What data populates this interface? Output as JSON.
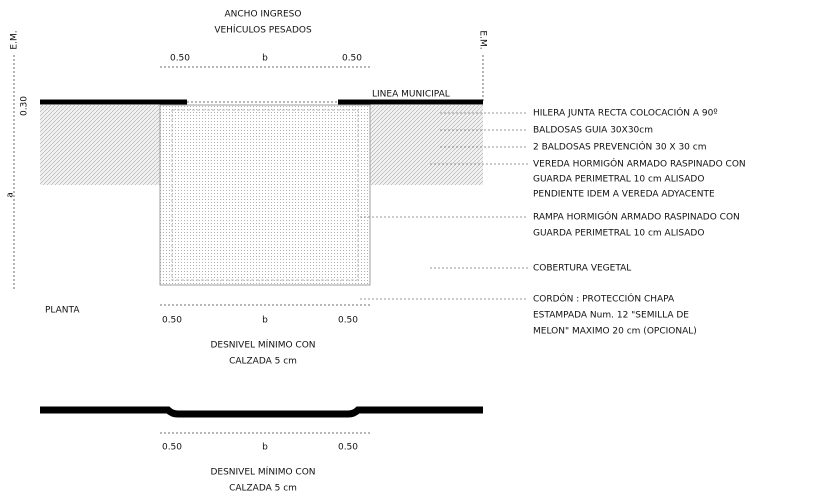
{
  "header": {
    "title_line1": "ANCHO INGRESO",
    "title_line2": "VEHÍCULOS PESADOS"
  },
  "axis_marks": {
    "em_left": "E.M.",
    "em_right": "E.M.",
    "depth_small": "0.30",
    "depth": "a"
  },
  "top_dims": [
    "0.50",
    "b",
    "0.50"
  ],
  "line_label": "LINEA MUNICIPAL",
  "callouts": [
    "HILERA JUNTA RECTA COLOCACIÓN A 90º",
    "BALDOSAS GUIA 30X30cm",
    "2 BALDOSAS PREVENCIÓN 30 X 30 cm",
    "VEREDA HORMIGÓN ARMADO RASPINADO CON",
    "GUARDA PERIMETRAL 10 cm  ALISADO",
    "PENDIENTE IDEM A VEREDA ADYACENTE",
    "RAMPA HORMIGÓN ARMADO RASPINADO CON",
    "GUARDA PERIMETRAL 10 cm  ALISADO",
    "COBERTURA VEGETAL",
    "CORDÓN : PROTECCIÓN CHAPA",
    "ESTAMPADA  Num. 12 \"SEMILLA DE",
    "MELON\" MAXIMO 20 cm (OPCIONAL)"
  ],
  "plan": {
    "label": "PLANTA",
    "dims": [
      "0.50",
      "b",
      "0.50"
    ],
    "note_line1": "DESNIVEL MÍNIMO CON",
    "note_line2": "CALZADA 5 cm"
  },
  "section": {
    "dims": [
      "0.50",
      "b",
      "0.50"
    ],
    "note_line1": "DESNIVEL MÍNIMO CON",
    "note_line2": "CALZADA 5 cm"
  }
}
